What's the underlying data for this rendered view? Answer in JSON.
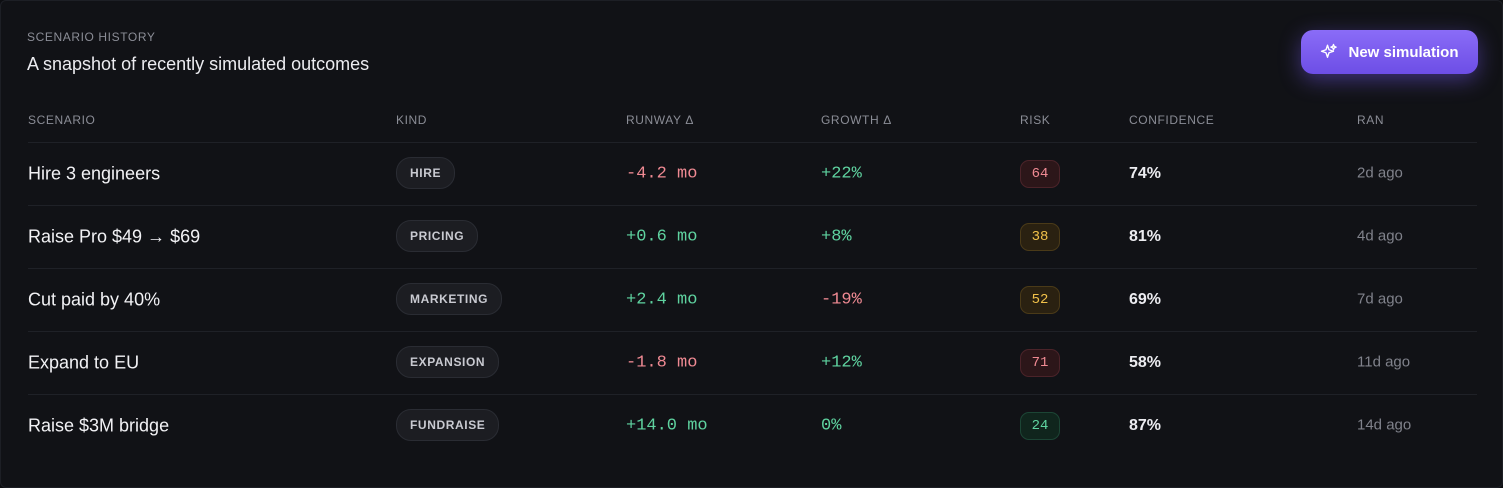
{
  "header": {
    "eyebrow": "SCENARIO HISTORY",
    "title": "A snapshot of recently simulated outcomes"
  },
  "button": {
    "label": "New simulation"
  },
  "table": {
    "columns": [
      "SCENARIO",
      "KIND",
      "RUNWAY Δ",
      "GROWTH Δ",
      "RISK",
      "CONFIDENCE",
      "RAN"
    ],
    "rows": [
      [
        "Hire 3 engineers",
        "HIRE",
        "-4.2 mo",
        "+22%",
        "64",
        "74%",
        "2d ago"
      ],
      [
        "Raise Pro $49 → $69",
        "PRICING",
        "+0.6 mo",
        "+8%",
        "38",
        "81%",
        "4d ago"
      ],
      [
        "Cut paid by 40%",
        "MARKETING",
        "+2.4 mo",
        "-19%",
        "52",
        "69%",
        "7d ago"
      ],
      [
        "Expand to EU",
        "EXPANSION",
        "-1.8 mo",
        "+12%",
        "71",
        "58%",
        "11d ago"
      ],
      [
        "Raise $3M bridge",
        "FUNDRAISE",
        "+14.0 mo",
        "0%",
        "24",
        "87%",
        "14d ago"
      ]
    ]
  }
}
